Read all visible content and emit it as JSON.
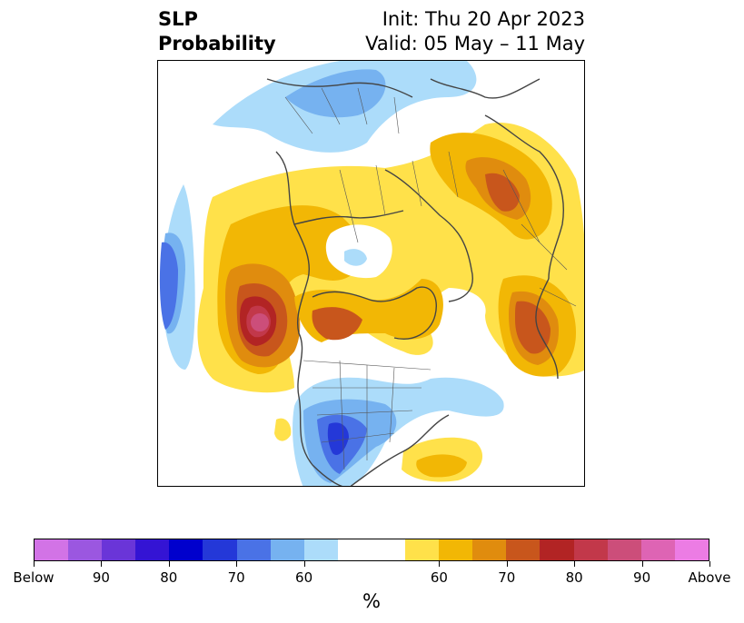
{
  "title": {
    "left_line1": "SLP",
    "left_line2": "Probability",
    "right_line1": "Init: Thu 20 Apr 2023",
    "right_line2": "Valid: 05 May – 11 May"
  },
  "colorbar": {
    "unit": "%",
    "segments": [
      {
        "color": "#d273e6"
      },
      {
        "color": "#9b57e0"
      },
      {
        "color": "#6a35d8"
      },
      {
        "color": "#3414d4"
      },
      {
        "color": "#0000cd"
      },
      {
        "color": "#2438d8"
      },
      {
        "color": "#4a72e6"
      },
      {
        "color": "#76b2f0"
      },
      {
        "color": "#acdcfa"
      },
      {
        "color": "#ffffff"
      },
      {
        "color": "#ffffff"
      },
      {
        "color": "#ffe14a"
      },
      {
        "color": "#f2b705"
      },
      {
        "color": "#e08c0e"
      },
      {
        "color": "#c8561c"
      },
      {
        "color": "#b22424"
      },
      {
        "color": "#c2384a"
      },
      {
        "color": "#cc4e7a"
      },
      {
        "color": "#de64b4"
      },
      {
        "color": "#ec7ce4"
      }
    ],
    "ticks": [
      {
        "label": "Below"
      },
      {
        "label": "90"
      },
      {
        "label": "80"
      },
      {
        "label": "70"
      },
      {
        "label": "60"
      },
      {
        "label": "60"
      },
      {
        "label": "70"
      },
      {
        "label": "80"
      },
      {
        "label": "90"
      },
      {
        "label": "Above"
      }
    ]
  },
  "map": {
    "below_colors": [
      "#acdcfa",
      "#76b2f0",
      "#4a72e6",
      "#2438d8"
    ],
    "above_colors": [
      "#ffe14a",
      "#f2b705",
      "#e08c0e",
      "#c8561c",
      "#b22424",
      "#c2384a",
      "#cc4e7a"
    ],
    "coastline_color": "#444444"
  }
}
